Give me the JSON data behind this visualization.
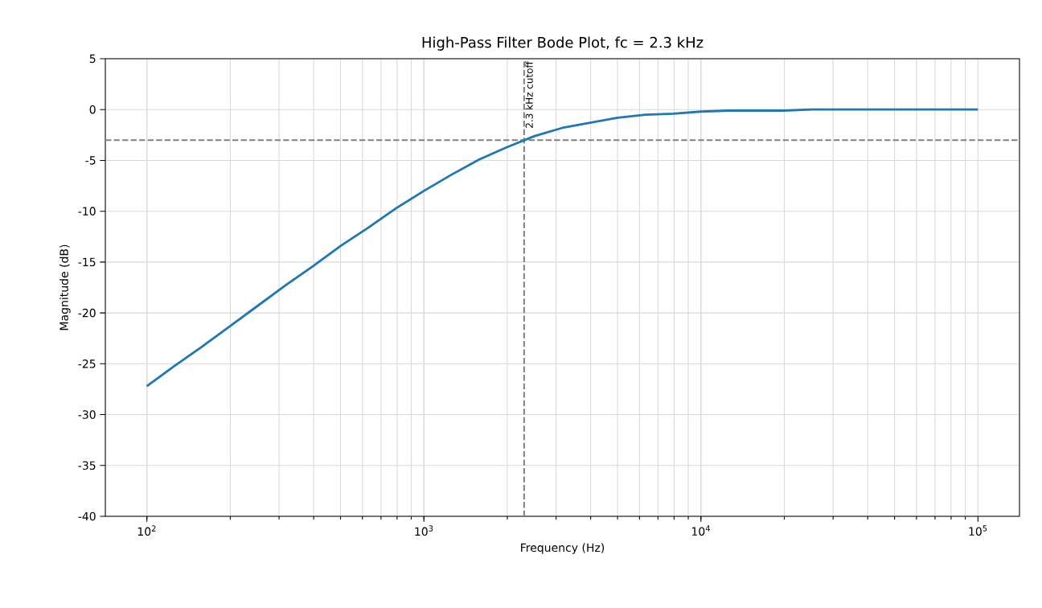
{
  "chart_data": {
    "type": "line",
    "title": "High-Pass Filter Bode Plot, fc = 2.3 kHz",
    "xlabel": "Frequency (Hz)",
    "ylabel": "Magnitude (dB)",
    "log": "x",
    "grid": true,
    "marker": "none",
    "line_style": "solid",
    "xlim": [
      70.8,
      141254
    ],
    "ylim": [
      -40,
      5
    ],
    "xticks": [
      {
        "value": 100,
        "label": "10$^{2}$"
      },
      {
        "value": 1000,
        "label": "10$^{3}$"
      },
      {
        "value": 10000,
        "label": "10$^{4}$"
      },
      {
        "value": 100000,
        "label": "10$^{5}$"
      }
    ],
    "yticks": [
      -40,
      -35,
      -30,
      -25,
      -20,
      -15,
      -10,
      -5,
      0,
      5
    ],
    "x": [
      100,
      125.9,
      158.5,
      199.5,
      251.2,
      316.2,
      398.1,
      501.2,
      631,
      794.3,
      1000,
      1259,
      1585,
      1995,
      2512,
      3162,
      3981,
      5012,
      6310,
      7943,
      10000,
      12589,
      15849,
      19953,
      25119,
      31623,
      50119,
      100000
    ],
    "series": [
      {
        "color": "#1f77b4",
        "values": [
          -27.2,
          -25.2,
          -23.3,
          -21.3,
          -19.3,
          -17.3,
          -15.4,
          -13.4,
          -11.6,
          -9.7,
          -8.0,
          -6.4,
          -4.9,
          -3.7,
          -2.6,
          -1.8,
          -1.3,
          -0.8,
          -0.5,
          -0.4,
          -0.2,
          -0.1,
          -0.1,
          -0.1,
          0.0,
          0.0,
          0.0,
          0.0
        ]
      }
    ],
    "ref_lines": [
      {
        "axis": "y",
        "value": -3,
        "color": "#808080",
        "line_style": "dashed"
      },
      {
        "axis": "x",
        "value": 2300,
        "color": "#808080",
        "line_style": "dashed",
        "label": "2.3 kHz cutoff"
      }
    ]
  }
}
